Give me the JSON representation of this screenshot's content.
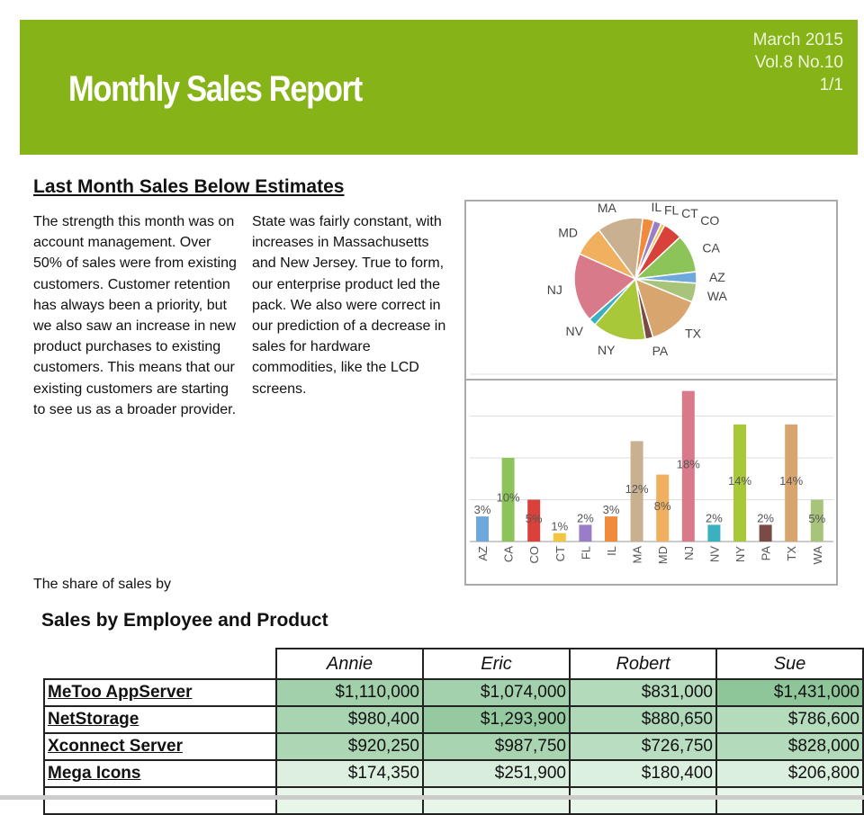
{
  "header": {
    "title": "Monthly Sales Report",
    "date": "March 2015",
    "volume": "Vol.8 No.10",
    "page": "1/1",
    "color": "#86b418"
  },
  "article": {
    "heading": "Last Month Sales Below Estimates",
    "col1": "The strength this month was on account management. Over 50% of sales were from existing customers. Customer retention has always been a priority, but we also saw an increase in new product purchases to existing customers. This means that our existing customers are starting to see us as a broader provider.",
    "col2": "State was fairly constant, with increases in Massachusetts and New Jersey. True to form, our enterprise product led the pack. We also were correct in our prediction of a decrease in sales for hardware commodities, like the LCD screens.",
    "share": "The share of sales by"
  },
  "chart_data": [
    {
      "type": "pie",
      "categories": [
        "IL",
        "FL",
        "CT",
        "CO",
        "CA",
        "AZ",
        "WA",
        "TX",
        "PA",
        "NY",
        "NV",
        "NJ",
        "MD",
        "MA"
      ],
      "values": [
        3,
        2,
        1,
        5,
        10,
        3,
        5,
        14,
        2,
        14,
        2,
        18,
        8,
        12
      ],
      "colors": [
        "#f08a3c",
        "#9a7dc8",
        "#f2c640",
        "#d9423a",
        "#8cc45a",
        "#6fa8dc",
        "#a8c47a",
        "#d9a56e",
        "#7a4a44",
        "#a8c83a",
        "#3ab0c0",
        "#d97a8a",
        "#f0b060",
        "#c8b090"
      ]
    },
    {
      "type": "bar",
      "categories": [
        "AZ",
        "CA",
        "CO",
        "CT",
        "FL",
        "IL",
        "MA",
        "MD",
        "NJ",
        "NV",
        "NY",
        "PA",
        "TX",
        "WA"
      ],
      "values": [
        3,
        10,
        5,
        1,
        2,
        3,
        12,
        8,
        18,
        2,
        14,
        2,
        14,
        5
      ],
      "labels": [
        "3%",
        "10%",
        "5%",
        "1%",
        "2%",
        "3%",
        "12%",
        "8%",
        "18%",
        "2%",
        "14%",
        "2%",
        "14%",
        "5%"
      ],
      "ylim": [
        0,
        20
      ],
      "grid": true,
      "colors": [
        "#6fa8dc",
        "#8cc45a",
        "#d9423a",
        "#f2c640",
        "#9a7dc8",
        "#f08a3c",
        "#c8b090",
        "#f0b060",
        "#d97a8a",
        "#3ab0c0",
        "#a8c83a",
        "#7a4a44",
        "#d9a56e",
        "#a8c47a"
      ]
    }
  ],
  "table": {
    "heading": "Sales by Employee and Product",
    "columns": [
      "Annie",
      "Eric",
      "Robert",
      "Sue"
    ],
    "rows": [
      {
        "product": "MeToo AppServer",
        "values": [
          "$1,110,000",
          "$1,074,000",
          "$831,000",
          "$1,431,000"
        ],
        "raw": [
          1110000,
          1074000,
          831000,
          1431000
        ]
      },
      {
        "product": "NetStorage",
        "values": [
          "$980,400",
          "$1,293,900",
          "$880,650",
          "$786,600"
        ],
        "raw": [
          980400,
          1293900,
          880650,
          786600
        ]
      },
      {
        "product": "Xconnect Server",
        "values": [
          "$920,250",
          "$987,750",
          "$726,750",
          "$828,000"
        ],
        "raw": [
          920250,
          987750,
          726750,
          828000
        ]
      },
      {
        "product": "Mega Icons",
        "values": [
          "$174,350",
          "$251,900",
          "$180,400",
          "$206,800"
        ],
        "raw": [
          174350,
          251900,
          180400,
          206800
        ]
      }
    ]
  }
}
